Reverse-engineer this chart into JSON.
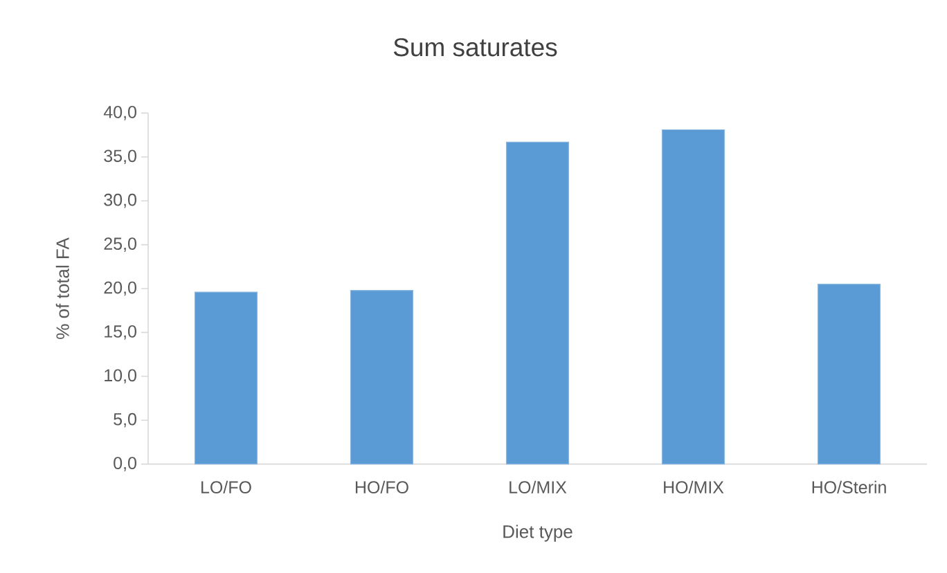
{
  "chart_data": {
    "type": "bar",
    "title": "Sum saturates",
    "xlabel": "Diet type",
    "ylabel": "% of total FA",
    "categories": [
      "LO/FO",
      "HO/FO",
      "LO/MIX",
      "HO/MIX",
      "HO/Sterin"
    ],
    "values": [
      19.6,
      19.8,
      36.7,
      38.1,
      20.5
    ],
    "color": "#5b9bd5",
    "ylim": [
      0,
      40
    ],
    "yticks": [
      {
        "value": 0,
        "label": "0,0"
      },
      {
        "value": 5,
        "label": "5,0"
      },
      {
        "value": 10,
        "label": "10,0"
      },
      {
        "value": 15,
        "label": "15,0"
      },
      {
        "value": 20,
        "label": "20,0"
      },
      {
        "value": 25,
        "label": "25,0"
      },
      {
        "value": 30,
        "label": "30,0"
      },
      {
        "value": 35,
        "label": "35,0"
      },
      {
        "value": 40,
        "label": "40,0"
      }
    ]
  }
}
